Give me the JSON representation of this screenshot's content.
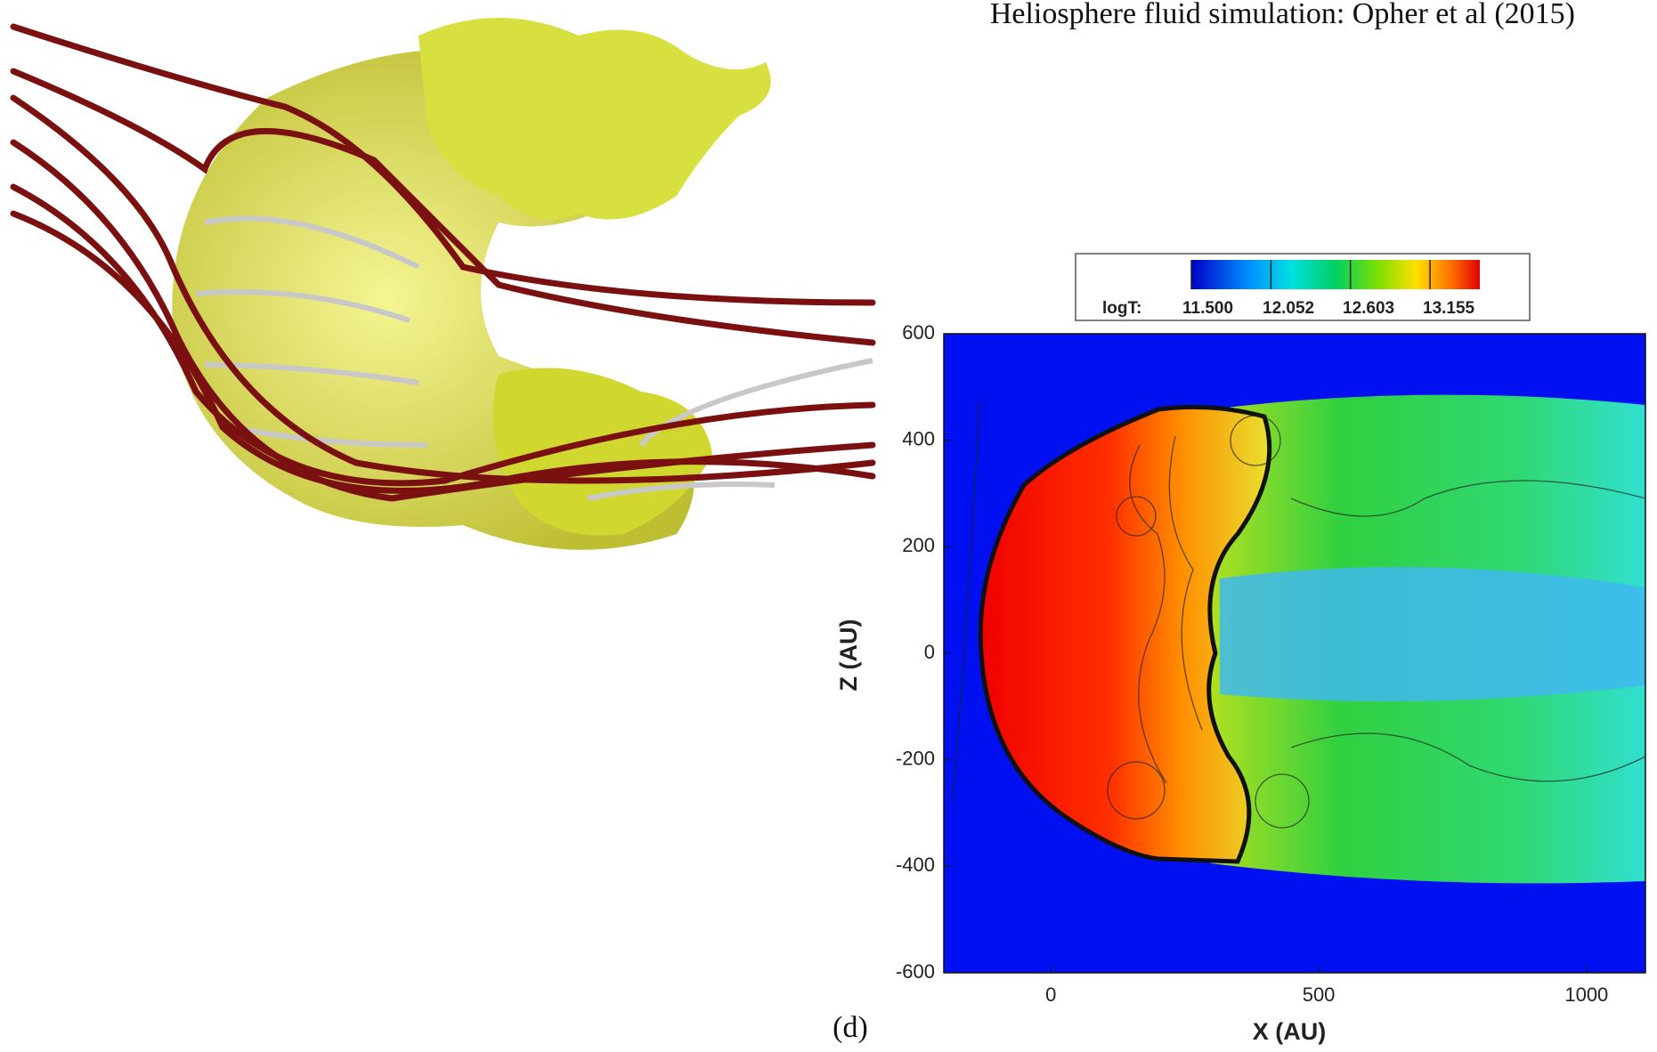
{
  "chart_data": {
    "type": "contour",
    "title": "Heliosphere fluid simulation: Opher et al (2015)",
    "annotation": "(d)",
    "xlabel": "X (AU)",
    "ylabel": "Z (AU)",
    "xlim": [
      -200,
      1110
    ],
    "ylim": [
      -600,
      600
    ],
    "xticks": [
      0,
      500,
      1000
    ],
    "yticks": [
      -600,
      -400,
      -200,
      0,
      200,
      400,
      600
    ],
    "colorbar": {
      "label": "logT:",
      "lim": [
        11.5,
        13.5
      ],
      "ticks": [
        {
          "value": 11.5,
          "label": "11.500"
        },
        {
          "value": 12.052,
          "label": "12.052"
        },
        {
          "value": 12.603,
          "label": "12.603"
        },
        {
          "value": 13.155,
          "label": "13.155"
        }
      ]
    }
  }
}
